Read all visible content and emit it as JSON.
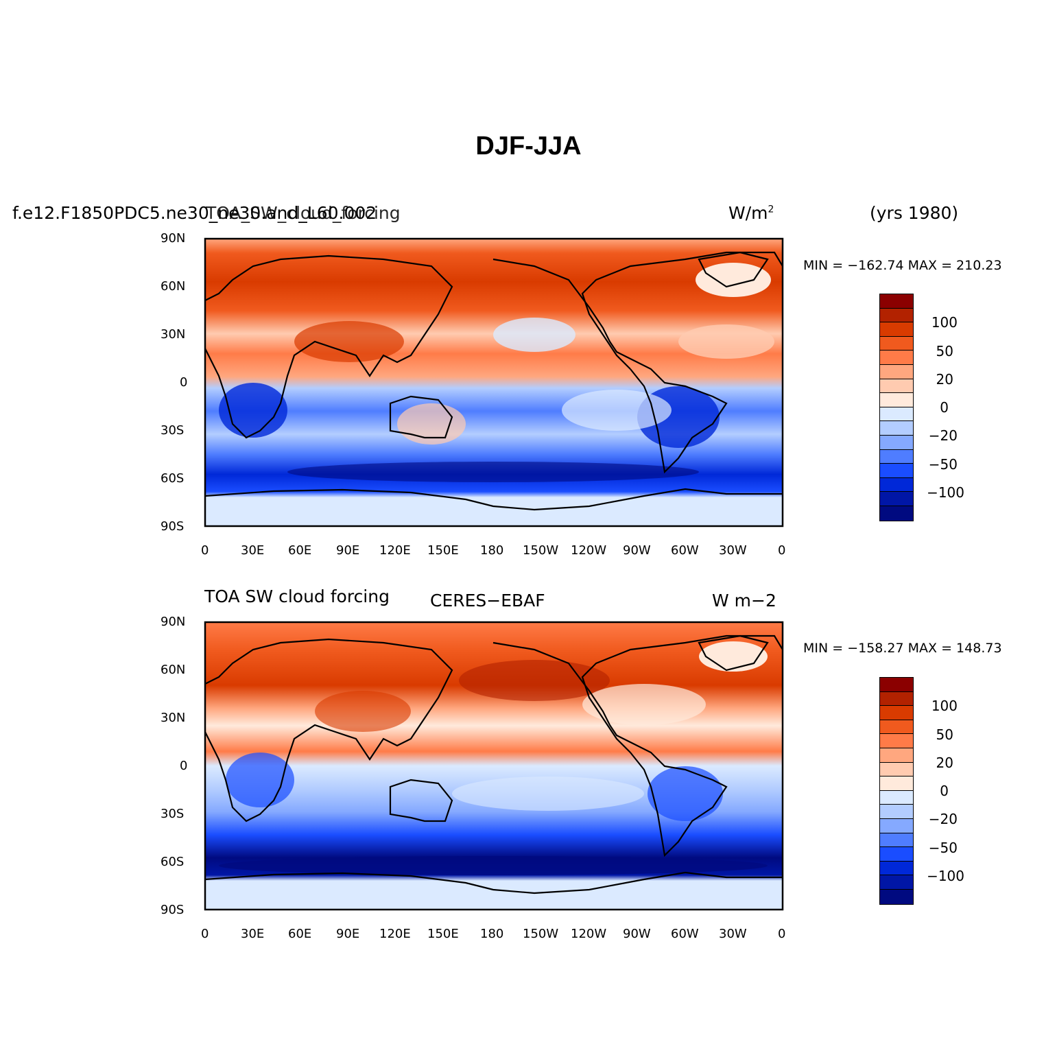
{
  "figure": {
    "title": "DJF-JJA",
    "years_label": "(yrs 1980)"
  },
  "panels": [
    {
      "left_label": "f.e12.F1850PDC5.ne30_ne30.and_L60.002",
      "center_label": "TOA_SW_cloud_forcing",
      "units": "W/m",
      "units_sup": "2",
      "min_max": "MIN = −162.74 MAX = 210.23"
    },
    {
      "left_label": "TOA SW cloud forcing",
      "center_label": "CERES−EBAF",
      "units": "W m−2",
      "units_sup": "",
      "min_max": "MIN = −158.27 MAX = 148.73"
    }
  ],
  "axes": {
    "lat_ticks": [
      "90N",
      "60N",
      "30N",
      "0",
      "30S",
      "60S",
      "90S"
    ],
    "lon_ticks": [
      "0",
      "30E",
      "60E",
      "90E",
      "120E",
      "150E",
      "180",
      "150W",
      "120W",
      "90W",
      "60W",
      "30W",
      "0"
    ]
  },
  "colorbar": {
    "colors": [
      "#8b0000",
      "#b22200",
      "#d93b00",
      "#f05a1e",
      "#ff7b48",
      "#ffa77f",
      "#ffcbb0",
      "#ffeadc",
      "#dbeaff",
      "#b3cdff",
      "#85a9ff",
      "#4f7dff",
      "#1a4dff",
      "#0028d8",
      "#0016a6",
      "#000a80"
    ],
    "labels": [
      "100",
      "50",
      "20",
      "0",
      "−20",
      "−50",
      "−100"
    ]
  }
}
